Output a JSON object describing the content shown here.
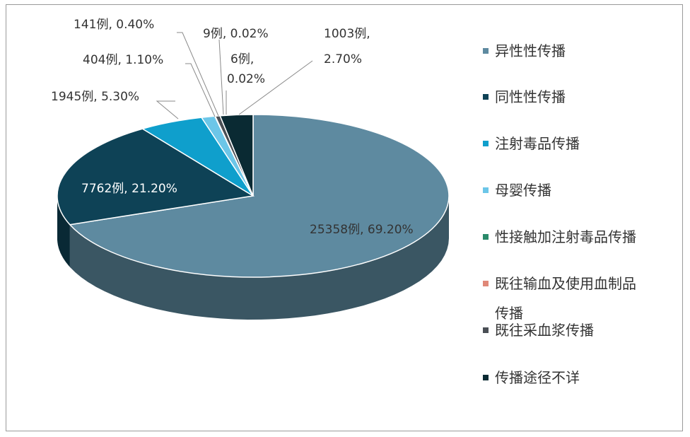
{
  "chart_data": {
    "type": "pie",
    "categories": [
      "异性性传播",
      "同性性传播",
      "注射毒品传播",
      "母婴传播",
      "性接触加注射毒品传播",
      "既往输血及使用血制品传播",
      "既往采血浆传播",
      "传播途径不详"
    ],
    "counts": [
      25358,
      7762,
      1945,
      404,
      9,
      6,
      141,
      1003
    ],
    "values": [
      69.2,
      21.2,
      5.3,
      1.1,
      0.02,
      0.02,
      0.4,
      2.7
    ],
    "data_labels": [
      "25358例, 69.20%",
      "7762例, 21.20%",
      "1945例, 5.30%",
      "404例, 1.10%",
      "9例, 0.02%",
      "6例, 0.02%",
      "141例, 0.40%",
      "1003例, 2.70%"
    ],
    "colors": [
      "#5e8aa0",
      "#0e4256",
      "#0f9fcc",
      "#6cc6e8",
      "#2a8a6a",
      "#e08878",
      "#4a4f55",
      "#0a2a33"
    ],
    "legend_position": "right",
    "style": "3d"
  },
  "legend": {
    "items": [
      "异性性传播",
      "同性性传播",
      "注射毒品传播",
      "母婴传播",
      "性接触加注射毒品传播",
      "既往输血及使用血制品传播",
      "既往采血浆传播",
      "传播途径不详"
    ]
  }
}
